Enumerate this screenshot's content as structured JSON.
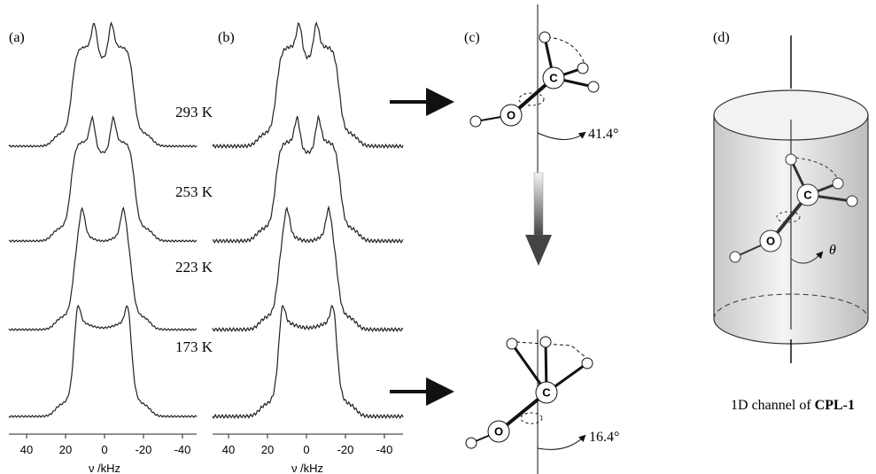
{
  "panels": [
    {
      "label": "(a)"
    },
    {
      "label": "(b)"
    },
    {
      "label": "(c)"
    },
    {
      "label": "(d)"
    }
  ],
  "temperatures": [
    "293 K",
    "253 K",
    "223 K",
    "173 K"
  ],
  "axes": [
    {
      "ticks": [
        40,
        20,
        0,
        -20,
        -40
      ],
      "label": "ν /kHz"
    },
    {
      "ticks": [
        40,
        20,
        0,
        -20,
        -40
      ],
      "label": "ν /kHz"
    }
  ],
  "atoms": {
    "oxygen": "O",
    "carbon": "C"
  },
  "angles": [
    "41.4°",
    "16.4°"
  ],
  "theta": "θ",
  "caption": {
    "prefix": "1D channel of ",
    "name": "CPL-1"
  }
}
